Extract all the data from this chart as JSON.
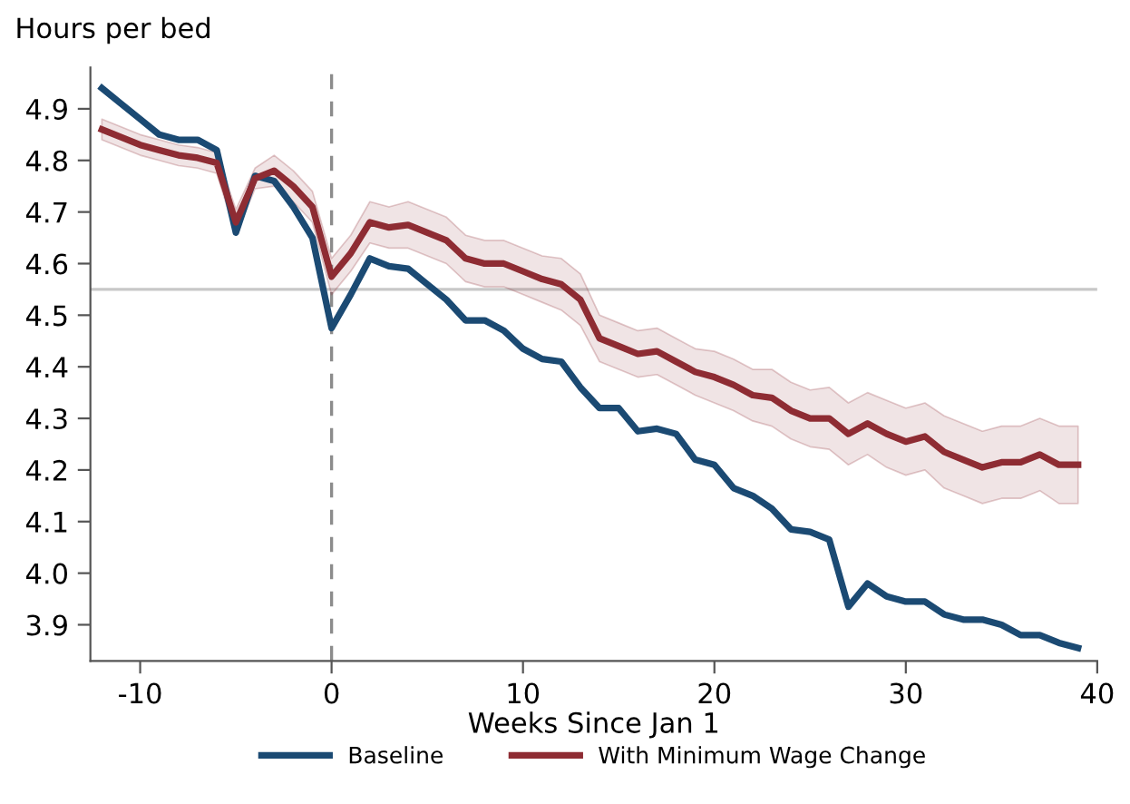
{
  "chart_data": {
    "type": "line",
    "ylabel": "Hours per bed",
    "xlabel": "Weeks Since Jan 1",
    "x": [
      -12,
      -11,
      -10,
      -9,
      -8,
      -7,
      -6,
      -5,
      -4,
      -3,
      -2,
      -1,
      0,
      1,
      2,
      3,
      4,
      5,
      6,
      7,
      8,
      9,
      10,
      11,
      12,
      13,
      14,
      15,
      16,
      17,
      18,
      19,
      20,
      21,
      22,
      23,
      24,
      25,
      26,
      27,
      28,
      29,
      30,
      31,
      32,
      33,
      34,
      35,
      36,
      37,
      38,
      39
    ],
    "series": [
      {
        "name": "Baseline",
        "color": "#1b4a73",
        "values": [
          4.94,
          4.91,
          4.88,
          4.85,
          4.84,
          4.84,
          4.82,
          4.66,
          4.77,
          4.76,
          4.71,
          4.65,
          4.475,
          4.54,
          4.61,
          4.595,
          4.59,
          4.56,
          4.53,
          4.49,
          4.49,
          4.47,
          4.435,
          4.415,
          4.41,
          4.36,
          4.32,
          4.32,
          4.275,
          4.28,
          4.27,
          4.22,
          4.21,
          4.165,
          4.15,
          4.125,
          4.085,
          4.08,
          4.065,
          3.935,
          3.98,
          3.955,
          3.945,
          3.945,
          3.92,
          3.91,
          3.91,
          3.9,
          3.88,
          3.88,
          3.865,
          3.855
        ]
      },
      {
        "name": "With Minimum Wage Change",
        "color": "#8e2c33",
        "values": [
          4.86,
          4.845,
          4.83,
          4.82,
          4.81,
          4.805,
          4.795,
          4.68,
          4.765,
          4.78,
          4.75,
          4.71,
          4.575,
          4.62,
          4.68,
          4.67,
          4.675,
          4.66,
          4.645,
          4.61,
          4.6,
          4.6,
          4.585,
          4.57,
          4.56,
          4.53,
          4.455,
          4.44,
          4.425,
          4.43,
          4.41,
          4.39,
          4.38,
          4.365,
          4.345,
          4.34,
          4.315,
          4.3,
          4.3,
          4.27,
          4.29,
          4.27,
          4.255,
          4.265,
          4.235,
          4.22,
          4.205,
          4.215,
          4.215,
          4.23,
          4.21,
          4.21
        ],
        "upper": [
          4.88,
          4.865,
          4.85,
          4.84,
          4.83,
          4.825,
          4.815,
          4.705,
          4.785,
          4.81,
          4.78,
          4.74,
          4.61,
          4.655,
          4.72,
          4.71,
          4.72,
          4.705,
          4.69,
          4.655,
          4.645,
          4.645,
          4.63,
          4.615,
          4.61,
          4.58,
          4.5,
          4.485,
          4.47,
          4.475,
          4.455,
          4.435,
          4.43,
          4.415,
          4.395,
          4.395,
          4.37,
          4.355,
          4.36,
          4.33,
          4.35,
          4.335,
          4.32,
          4.33,
          4.305,
          4.29,
          4.275,
          4.285,
          4.285,
          4.3,
          4.285,
          4.285
        ],
        "lower": [
          4.84,
          4.825,
          4.81,
          4.8,
          4.79,
          4.785,
          4.775,
          4.655,
          4.745,
          4.75,
          4.72,
          4.68,
          4.54,
          4.585,
          4.64,
          4.63,
          4.63,
          4.615,
          4.6,
          4.565,
          4.555,
          4.555,
          4.54,
          4.525,
          4.51,
          4.48,
          4.41,
          4.395,
          4.38,
          4.385,
          4.365,
          4.345,
          4.33,
          4.315,
          4.295,
          4.285,
          4.26,
          4.245,
          4.24,
          4.21,
          4.23,
          4.205,
          4.19,
          4.2,
          4.165,
          4.15,
          4.135,
          4.145,
          4.145,
          4.16,
          4.135,
          4.135
        ]
      }
    ],
    "xlim": [
      -12.6,
      40
    ],
    "xticks": [
      -10,
      0,
      10,
      20,
      30,
      40
    ],
    "ylim": [
      3.83,
      4.98
    ],
    "yticks": [
      3.9,
      {
        "value": 4,
        "label": "4.0"
      },
      4.1,
      4.2,
      4.3,
      4.4,
      4.5,
      4.6,
      4.7,
      4.8,
      4.9
    ],
    "ref_lines": [
      {
        "axis": "y",
        "value": 4.55,
        "color": "#c8c8c8",
        "line_style": "solid"
      },
      {
        "axis": "x",
        "value": 0,
        "color": "#8c8c8c",
        "line_style": "dashed"
      }
    ],
    "grid": false,
    "legend": "bottom",
    "marker": "none",
    "line_style": "solid"
  }
}
